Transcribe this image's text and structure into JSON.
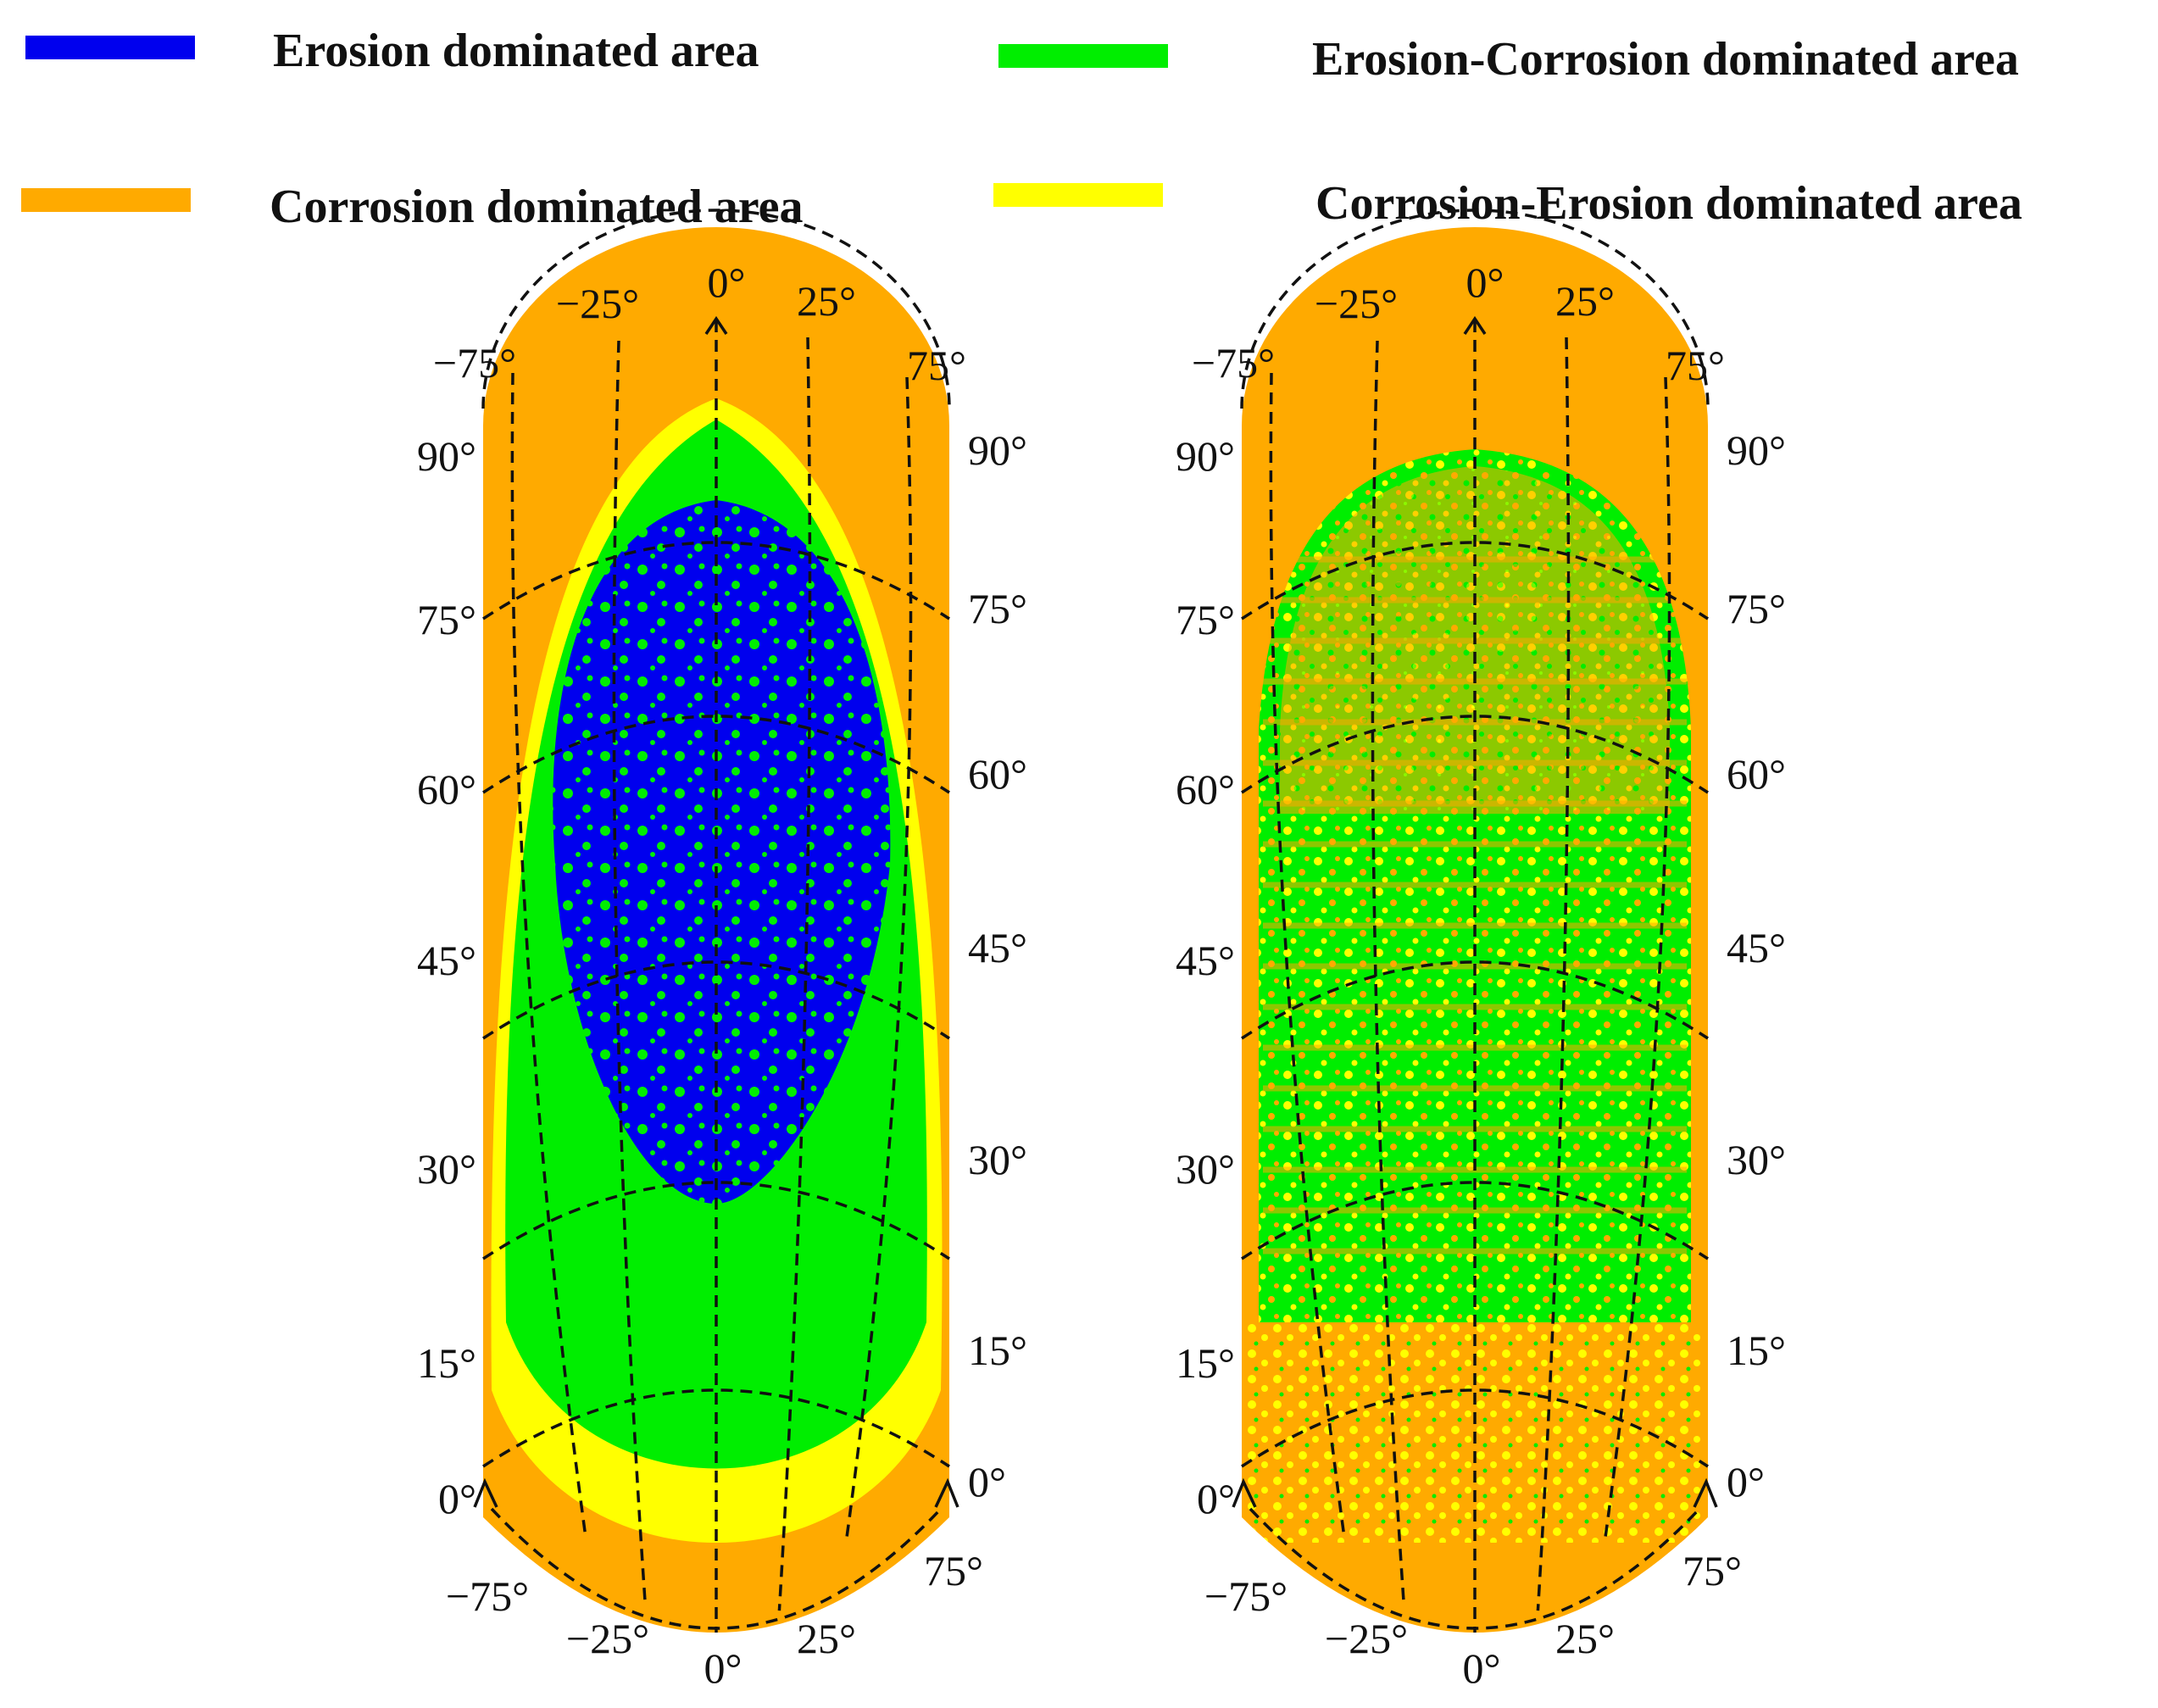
{
  "legend": [
    {
      "label": "Erosion dominated area",
      "color": "#0000ee"
    },
    {
      "label": "Erosion-Corrosion   dominated area",
      "color": "#00ee00"
    },
    {
      "label": "Corrosion dominated area",
      "color": "#ffaa00"
    },
    {
      "label": "Corrosion-Erosion   dominated area",
      "color": "#ffff00"
    }
  ],
  "colors": {
    "erosion": "#0000ee",
    "erosion_corrosion": "#00ee00",
    "corrosion": "#ffaa00",
    "corrosion_erosion": "#ffff00"
  },
  "specimens": [
    {
      "id": "left",
      "labels": {
        "top_angles": [
          "−25°",
          "0°",
          "25°"
        ],
        "top_side_angles": [
          "−75°",
          "75°"
        ],
        "left_heights": [
          "90°",
          "75°",
          "60°",
          "45°",
          "30°",
          "15°",
          "0°"
        ],
        "right_heights": [
          "90°",
          "75°",
          "60°",
          "45°",
          "30°",
          "15°",
          "0°"
        ],
        "bottom_angles": [
          "−75°",
          "−25°",
          "0°",
          "25°",
          "75°"
        ]
      }
    },
    {
      "id": "right",
      "labels": {
        "top_angles": [
          "−25°",
          "0°",
          "25°"
        ],
        "top_side_angles": [
          "−75°",
          "75°"
        ],
        "left_heights": [
          "90°",
          "75°",
          "60°",
          "45°",
          "30°",
          "15°",
          "0°"
        ],
        "right_heights": [
          "90°",
          "75°",
          "60°",
          "45°",
          "30°",
          "15°",
          "0°"
        ],
        "bottom_angles": [
          "−75°",
          "−25°",
          "0°",
          "25°",
          "75°"
        ]
      }
    }
  ]
}
